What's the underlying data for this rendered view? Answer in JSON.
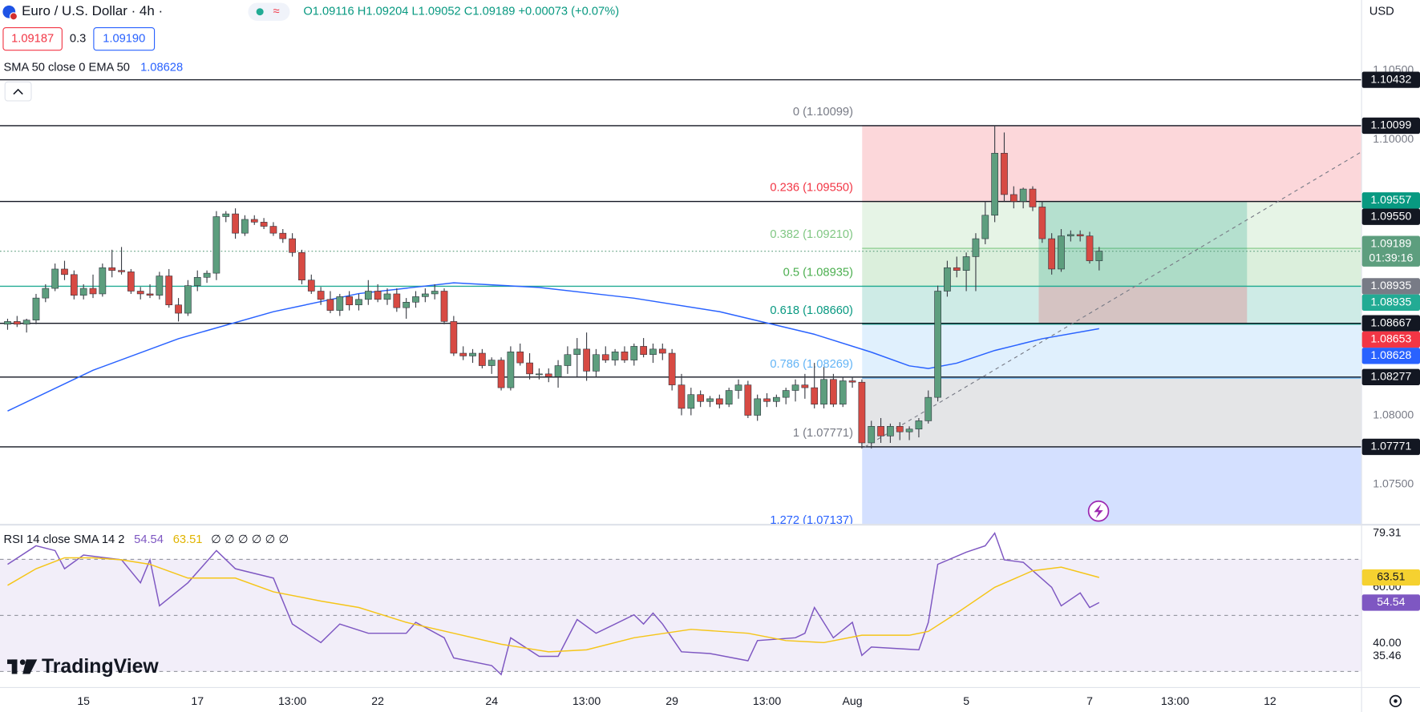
{
  "header": {
    "symbol": "Euro / U.S. Dollar · 4h ·",
    "ohlc": "O1.09116 H1.09204 L1.09052 C1.09189 +0.00073 (+0.07%)",
    "bid": "1.09187",
    "spread": "0.3",
    "ask": "1.09190",
    "indicator": "SMA 50 close 0 EMA 50",
    "indicator_value": "1.08628",
    "currency": "USD",
    "logo": "TradingView"
  },
  "chart_data": [
    {
      "type": "candlestick",
      "up_color": "#5d9e7e",
      "down_color": "#d74a43",
      "xlim": [
        -0.8,
        142.6
      ],
      "xticks": [
        {
          "value": 8,
          "label": "15"
        },
        {
          "value": 20,
          "label": "17"
        },
        {
          "value": 30,
          "label": "13:00"
        },
        {
          "value": 39,
          "label": "22"
        },
        {
          "value": 51,
          "label": "24"
        },
        {
          "value": 61,
          "label": "13:00"
        },
        {
          "value": 70,
          "label": "29"
        },
        {
          "value": 80,
          "label": "13:00"
        },
        {
          "value": 89,
          "label": "Aug"
        },
        {
          "value": 101,
          "label": "5"
        },
        {
          "value": 114,
          "label": "7"
        },
        {
          "value": 123,
          "label": "13:00"
        },
        {
          "value": 133,
          "label": "12"
        }
      ],
      "ylim": [
        1.0722,
        1.1101
      ],
      "yticks": [
        {
          "value": 1.105,
          "label": "1.10500"
        },
        {
          "value": 1.1,
          "label": "1.10000"
        },
        {
          "value": 1.095,
          "label": "1.09500"
        },
        {
          "value": 1.08,
          "label": "1.08000"
        },
        {
          "value": 1.075,
          "label": "1.07500"
        }
      ],
      "candles": [
        [
          1.0866,
          1.087,
          1.0862,
          1.0868
        ],
        [
          1.0868,
          1.0872,
          1.0864,
          1.0866
        ],
        [
          1.0866,
          1.087,
          1.086,
          1.0869
        ],
        [
          1.0869,
          1.0888,
          1.0866,
          1.0885
        ],
        [
          1.0885,
          1.0895,
          1.0882,
          1.0892
        ],
        [
          1.0892,
          1.091,
          1.089,
          1.0906
        ],
        [
          1.0906,
          1.0912,
          1.0898,
          1.0902
        ],
        [
          1.0902,
          1.0905,
          1.0884,
          1.0887
        ],
        [
          1.0887,
          1.0895,
          1.0884,
          1.0892
        ],
        [
          1.0892,
          1.0902,
          1.0885,
          1.0888
        ],
        [
          1.0888,
          1.091,
          1.0886,
          1.0907
        ],
        [
          1.0907,
          1.092,
          1.09,
          1.0905
        ],
        [
          1.0905,
          1.0922,
          1.0902,
          1.0904
        ],
        [
          1.0904,
          1.0906,
          1.0888,
          1.089
        ],
        [
          1.089,
          1.0893,
          1.0884,
          1.0888
        ],
        [
          1.0888,
          1.0895,
          1.0885,
          1.0887
        ],
        [
          1.0887,
          1.0904,
          1.0884,
          1.0901
        ],
        [
          1.0901,
          1.0906,
          1.0878,
          1.088
        ],
        [
          1.088,
          1.0885,
          1.0868,
          1.0874
        ],
        [
          1.0874,
          1.0898,
          1.0872,
          1.0894
        ],
        [
          1.0894,
          1.0905,
          1.089,
          1.09
        ],
        [
          1.09,
          1.0905,
          1.0896,
          1.0903
        ],
        [
          1.0903,
          1.0948,
          1.0898,
          1.0944
        ],
        [
          1.0944,
          1.0948,
          1.094,
          1.0946
        ],
        [
          1.0946,
          1.095,
          1.0928,
          1.0932
        ],
        [
          1.0932,
          1.0945,
          1.093,
          1.0942
        ],
        [
          1.0942,
          1.0945,
          1.0938,
          1.094
        ],
        [
          1.094,
          1.0943,
          1.0935,
          1.0937
        ],
        [
          1.0937,
          1.094,
          1.093,
          1.0932
        ],
        [
          1.0932,
          1.0935,
          1.0925,
          1.0928
        ],
        [
          1.0928,
          1.0932,
          1.0915,
          1.0918
        ],
        [
          1.0918,
          1.092,
          1.0895,
          1.0898
        ],
        [
          1.0898,
          1.0902,
          1.0888,
          1.089
        ],
        [
          1.089,
          1.0893,
          1.088,
          1.0884
        ],
        [
          1.0884,
          1.089,
          1.0874,
          1.0876
        ],
        [
          1.0876,
          1.0888,
          1.0872,
          1.0886
        ],
        [
          1.0886,
          1.089,
          1.0876,
          1.088
        ],
        [
          1.088,
          1.0888,
          1.0876,
          1.0884
        ],
        [
          1.0884,
          1.0898,
          1.088,
          1.089
        ],
        [
          1.089,
          1.0895,
          1.0882,
          1.0884
        ],
        [
          1.0884,
          1.0892,
          1.088,
          1.0888
        ],
        [
          1.0888,
          1.0892,
          1.0875,
          1.0878
        ],
        [
          1.0878,
          1.0885,
          1.087,
          1.0882
        ],
        [
          1.0882,
          1.089,
          1.0878,
          1.0886
        ],
        [
          1.0886,
          1.0892,
          1.0882,
          1.0888
        ],
        [
          1.0888,
          1.0895,
          1.0884,
          1.089
        ],
        [
          1.089,
          1.0892,
          1.0866,
          1.0868
        ],
        [
          1.0868,
          1.0872,
          1.0843,
          1.0845
        ],
        [
          1.0845,
          1.085,
          1.084,
          1.0843
        ],
        [
          1.0843,
          1.0848,
          1.0838,
          1.0845
        ],
        [
          1.0845,
          1.0848,
          1.0834,
          1.0836
        ],
        [
          1.0836,
          1.0842,
          1.083,
          1.084
        ],
        [
          1.084,
          1.0842,
          1.0818,
          1.082
        ],
        [
          1.082,
          1.085,
          1.0818,
          1.0846
        ],
        [
          1.0846,
          1.0852,
          1.0836,
          1.0838
        ],
        [
          1.0838,
          1.0845,
          1.0826,
          1.083
        ],
        [
          1.083,
          1.0834,
          1.0826,
          1.083
        ],
        [
          1.083,
          1.0834,
          1.0824,
          1.0828
        ],
        [
          1.0828,
          1.084,
          1.082,
          1.0836
        ],
        [
          1.0836,
          1.085,
          1.083,
          1.0844
        ],
        [
          1.0844,
          1.0856,
          1.0828,
          1.0848
        ],
        [
          1.0848,
          1.086,
          1.0825,
          1.0832
        ],
        [
          1.0832,
          1.0848,
          1.0828,
          1.0844
        ],
        [
          1.0844,
          1.085,
          1.0838,
          1.084
        ],
        [
          1.084,
          1.0848,
          1.0836,
          1.0846
        ],
        [
          1.0846,
          1.085,
          1.0838,
          1.084
        ],
        [
          1.084,
          1.0852,
          1.0836,
          1.085
        ],
        [
          1.085,
          1.0856,
          1.0842,
          1.0844
        ],
        [
          1.0844,
          1.0852,
          1.0838,
          1.0848
        ],
        [
          1.0848,
          1.0852,
          1.084,
          1.0845
        ],
        [
          1.0845,
          1.0848,
          1.0818,
          1.0822
        ],
        [
          1.0822,
          1.083,
          1.08,
          1.0805
        ],
        [
          1.0805,
          1.082,
          1.08,
          1.0815
        ],
        [
          1.0815,
          1.0818,
          1.0806,
          1.081
        ],
        [
          1.081,
          1.0814,
          1.0806,
          1.0812
        ],
        [
          1.0812,
          1.0815,
          1.0805,
          1.0808
        ],
        [
          1.0808,
          1.082,
          1.0806,
          1.0818
        ],
        [
          1.0818,
          1.0826,
          1.0812,
          1.0822
        ],
        [
          1.0822,
          1.0825,
          1.0798,
          1.08
        ],
        [
          1.08,
          1.0815,
          1.0796,
          1.0812
        ],
        [
          1.0812,
          1.0816,
          1.0806,
          1.081
        ],
        [
          1.081,
          1.0815,
          1.0806,
          1.0813
        ],
        [
          1.0813,
          1.082,
          1.0808,
          1.0818
        ],
        [
          1.0818,
          1.0826,
          1.081,
          1.0822
        ],
        [
          1.0822,
          1.083,
          1.0812,
          1.082
        ],
        [
          1.082,
          1.0838,
          1.0805,
          1.0808
        ],
        [
          1.0808,
          1.0835,
          1.0805,
          1.0826
        ],
        [
          1.0826,
          1.083,
          1.0806,
          1.0808
        ],
        [
          1.0808,
          1.0828,
          1.0806,
          1.0825
        ],
        [
          1.0825,
          1.0828,
          1.082,
          1.0824
        ],
        [
          1.0824,
          1.0826,
          1.0776,
          1.078
        ],
        [
          1.078,
          1.0796,
          1.0776,
          1.0792
        ],
        [
          1.0792,
          1.0798,
          1.078,
          1.0785
        ],
        [
          1.0785,
          1.0794,
          1.078,
          1.0792
        ],
        [
          1.0792,
          1.0795,
          1.0782,
          1.0788
        ],
        [
          1.0788,
          1.0792,
          1.0782,
          1.079
        ],
        [
          1.079,
          1.0798,
          1.0784,
          1.0796
        ],
        [
          1.0796,
          1.0818,
          1.0794,
          1.0813
        ],
        [
          1.0813,
          1.0894,
          1.081,
          1.089
        ],
        [
          1.089,
          1.0912,
          1.0886,
          1.0907
        ],
        [
          1.0907,
          1.0915,
          1.09,
          1.0905
        ],
        [
          1.0905,
          1.0918,
          1.089,
          1.0915
        ],
        [
          1.0915,
          1.0932,
          1.089,
          1.0928
        ],
        [
          1.0928,
          1.0955,
          1.0924,
          1.0945
        ],
        [
          1.0945,
          1.101,
          1.094,
          1.099
        ],
        [
          1.099,
          1.1005,
          1.0955,
          1.096
        ],
        [
          1.096,
          1.0966,
          1.095,
          1.0955
        ],
        [
          1.0955,
          1.0965,
          1.095,
          1.0964
        ],
        [
          1.0964,
          1.0966,
          1.0948,
          1.0951
        ],
        [
          1.0951,
          1.0955,
          1.0925,
          1.0928
        ],
        [
          1.0928,
          1.0932,
          1.0902,
          1.0906
        ],
        [
          1.0906,
          1.0935,
          1.0904,
          1.093
        ],
        [
          1.093,
          1.0934,
          1.0926,
          1.0931
        ],
        [
          1.0931,
          1.0934,
          1.0926,
          1.093
        ],
        [
          1.093,
          1.0933,
          1.091,
          1.0912
        ],
        [
          1.0912,
          1.0922,
          1.0905,
          1.0919
        ]
      ],
      "ema": {
        "color": "#2962ff",
        "x": [
          0,
          9,
          18,
          28,
          37,
          47,
          56,
          66,
          75,
          85,
          91,
          95,
          97,
          100,
          104,
          109,
          115
        ],
        "values": [
          1.08031,
          1.08326,
          1.08555,
          1.08751,
          1.08882,
          1.0896,
          1.08927,
          1.08849,
          1.08751,
          1.08587,
          1.08457,
          1.08358,
          1.08339,
          1.08378,
          1.0847,
          1.08555,
          1.08628
        ]
      },
      "fib_levels": [
        {
          "value": 1.10099,
          "label": "0 (1.10099)",
          "color": "#787b86"
        },
        {
          "value": 1.0955,
          "label": "0.236 (1.09550)",
          "color": "#f23645"
        },
        {
          "value": 1.0921,
          "label": "0.382 (1.09210)",
          "color": "#81c784"
        },
        {
          "value": 1.08935,
          "label": "0.5 (1.08935)",
          "color": "#4caf50"
        },
        {
          "value": 1.0866,
          "label": "0.618 (1.08660)",
          "color": "#089981"
        },
        {
          "value": 1.08269,
          "label": "0.786 (1.08269)",
          "color": "#64b5f6"
        },
        {
          "value": 1.07771,
          "label": "1 (1.07771)",
          "color": "#787b86"
        },
        {
          "value": 1.07137,
          "label": "1.272 (1.07137)",
          "color": "#2962ff"
        }
      ],
      "price_labels": [
        {
          "value": 1.10432,
          "label": "1.10432",
          "color": "#131722",
          "line": "solid"
        },
        {
          "value": 1.10099,
          "label": "1.10099",
          "color": "#131722",
          "line": "solid"
        },
        {
          "value": 1.09557,
          "label": "1.09557",
          "color": "#089981"
        },
        {
          "value": 1.0955,
          "label": "1.09550",
          "color": "#131722",
          "line": "solid"
        },
        {
          "value": 1.09189,
          "label": "1.09189",
          "sub": "01:39:16",
          "color": "#5d9e7e",
          "line": "dotted"
        },
        {
          "value": 1.08935,
          "label": "1.08935",
          "color": "#787b86"
        },
        {
          "value": 1.08935,
          "label": "1.08935",
          "color": "#22ab94",
          "line": "solid"
        },
        {
          "value": 1.08667,
          "label": "1.08667",
          "color": "#131722",
          "line": "solid"
        },
        {
          "value": 1.08653,
          "label": "1.08653",
          "color": "#f23645"
        },
        {
          "value": 1.08628,
          "label": "1.08628",
          "color": "#2962ff"
        },
        {
          "value": 1.08277,
          "label": "1.08277",
          "color": "#131722",
          "line": "solid"
        },
        {
          "value": 1.07771,
          "label": "1.07771",
          "color": "#131722",
          "line": "solid"
        }
      ]
    },
    {
      "type": "line",
      "title": "RSI 14 close SMA 14 2",
      "extra": "∅ ∅ ∅ ∅ ∅ ∅",
      "xlim": [
        -0.8,
        142.6
      ],
      "ylim": [
        24.9,
        82
      ],
      "yticks": [
        79.31,
        {
          "value": 60,
          "label": "60.00"
        },
        {
          "value": 40,
          "label": "40.00"
        },
        35.46
      ],
      "bands": [
        70,
        50,
        30
      ],
      "band_color": "#7e57c2",
      "series": [
        {
          "color": "#7e57c2",
          "x": [
            0,
            3,
            5,
            6,
            8,
            12,
            14,
            15,
            16,
            19,
            22,
            24,
            28,
            30,
            33,
            35,
            38,
            42,
            43,
            46,
            47,
            51,
            52,
            53,
            56,
            58,
            60,
            62,
            66,
            67,
            68,
            69,
            71,
            74,
            78,
            79,
            83,
            84,
            85,
            87,
            89,
            90,
            91,
            96,
            97,
            98,
            101,
            103,
            104,
            105,
            107,
            110,
            111,
            113,
            114,
            115
          ],
          "values": [
            68.2,
            74.8,
            73.1,
            66.6,
            71.5,
            69.8,
            61.6,
            69.8,
            53.4,
            61.6,
            73.1,
            66.6,
            63.3,
            46.9,
            40.3,
            46.9,
            43.6,
            43.6,
            47.5,
            42.0,
            34.8,
            32.1,
            28.9,
            42.0,
            35.4,
            35.4,
            48.5,
            43.6,
            50.2,
            46.9,
            50.8,
            46.9,
            37.0,
            36.4,
            33.8,
            41.0,
            42.0,
            43.6,
            52.8,
            42.0,
            47.5,
            35.7,
            38.7,
            37.7,
            47.5,
            68.2,
            72.5,
            74.8,
            79.31,
            69.8,
            68.9,
            60.0,
            53.4,
            58.0,
            52.8,
            54.54
          ]
        },
        {
          "color": "#f5c518",
          "x": [
            0,
            3,
            6,
            9,
            12,
            15,
            19,
            24,
            28,
            33,
            37,
            42,
            47,
            52,
            57,
            61,
            66,
            72,
            78,
            82,
            86,
            90,
            95,
            97,
            100,
            104,
            108,
            111,
            115
          ],
          "values": [
            60.7,
            66.6,
            70.5,
            70.5,
            69.8,
            68.2,
            63.3,
            63.3,
            58.4,
            55.1,
            52.8,
            47.5,
            43.6,
            39.7,
            37.0,
            37.7,
            42.0,
            45.0,
            43.6,
            41.0,
            40.3,
            42.9,
            42.9,
            44.3,
            50.8,
            60.0,
            65.9,
            67.2,
            63.51
          ]
        }
      ],
      "price_labels": [
        {
          "value": 63.51,
          "label": "63.51",
          "color": "#f5d130",
          "text_color": "#131722"
        },
        {
          "value": 54.54,
          "label": "54.54",
          "color": "#7e57c2"
        }
      ]
    }
  ]
}
